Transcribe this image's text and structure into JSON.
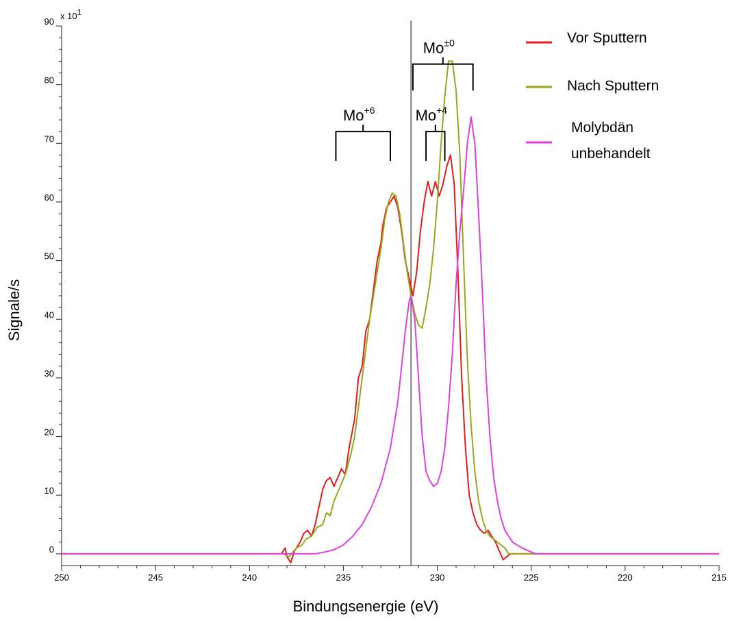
{
  "chart_data": {
    "type": "line",
    "xlabel": "Bindungsenergie (eV)",
    "ylabel": "Signale/s",
    "y_multiplier": {
      "base": "x 10",
      "exponent": "1"
    },
    "xlim": [
      250,
      215
    ],
    "ylim": [
      -2,
      90
    ],
    "x_reversed": true,
    "x_ticks": [
      250,
      245,
      240,
      235,
      230,
      225,
      220,
      215
    ],
    "x_ticks_labels": [
      "250",
      "245",
      "240",
      "235",
      "230",
      "225",
      "220",
      "215"
    ],
    "y_ticks": [
      0,
      10,
      20,
      30,
      40,
      50,
      60,
      70,
      80,
      90
    ],
    "y_ticks_labels": [
      "0",
      "10",
      "20",
      "30",
      "40",
      "50",
      "60",
      "70",
      "80",
      "90"
    ],
    "grid": false,
    "legend_position": "top-right",
    "vertical_line_x": 231.4,
    "series": [
      {
        "name": "Vor Sputtern",
        "color": "#e31b1b",
        "points": [
          [
            250,
            0
          ],
          [
            238.3,
            0
          ],
          [
            238.1,
            1
          ],
          [
            238,
            -0.5
          ],
          [
            237.8,
            -1.5
          ],
          [
            237.6,
            0.5
          ],
          [
            237.3,
            2
          ],
          [
            237.1,
            3.5
          ],
          [
            236.9,
            4
          ],
          [
            236.7,
            3
          ],
          [
            236.5,
            5
          ],
          [
            236.3,
            8
          ],
          [
            236.1,
            11
          ],
          [
            235.9,
            12.5
          ],
          [
            235.7,
            13
          ],
          [
            235.5,
            11.5
          ],
          [
            235.3,
            13
          ],
          [
            235.1,
            14.5
          ],
          [
            234.9,
            13.5
          ],
          [
            234.7,
            18
          ],
          [
            234.4,
            23
          ],
          [
            234.2,
            30
          ],
          [
            234,
            32
          ],
          [
            233.8,
            38
          ],
          [
            233.6,
            40
          ],
          [
            233.4,
            45
          ],
          [
            233.2,
            50
          ],
          [
            233,
            53
          ],
          [
            232.9,
            56
          ],
          [
            232.7,
            59
          ],
          [
            232.5,
            60
          ],
          [
            232.3,
            61
          ],
          [
            232.1,
            59
          ],
          [
            231.9,
            55
          ],
          [
            231.7,
            50
          ],
          [
            231.5,
            47
          ],
          [
            231.3,
            44
          ],
          [
            231.1,
            48
          ],
          [
            230.9,
            55
          ],
          [
            230.7,
            60
          ],
          [
            230.5,
            63.5
          ],
          [
            230.3,
            61
          ],
          [
            230.1,
            63.5
          ],
          [
            229.9,
            61
          ],
          [
            229.7,
            63
          ],
          [
            229.5,
            66
          ],
          [
            229.3,
            68
          ],
          [
            229.1,
            63
          ],
          [
            228.9,
            48
          ],
          [
            228.7,
            30
          ],
          [
            228.5,
            18
          ],
          [
            228.3,
            10
          ],
          [
            228.1,
            7
          ],
          [
            227.9,
            5
          ],
          [
            227.7,
            4
          ],
          [
            227.5,
            3.5
          ],
          [
            227.3,
            4
          ],
          [
            227.1,
            3
          ],
          [
            226.9,
            2
          ],
          [
            226.7,
            0.5
          ],
          [
            226.5,
            -1
          ],
          [
            226.3,
            -0.5
          ],
          [
            226.1,
            0
          ],
          [
            215,
            0
          ]
        ]
      },
      {
        "name": "Nach Sputtern",
        "color": "#9aa51c",
        "points": [
          [
            250,
            0
          ],
          [
            238.2,
            0
          ],
          [
            237.9,
            -0.5
          ],
          [
            237.5,
            1
          ],
          [
            237.2,
            1.5
          ],
          [
            237,
            2.5
          ],
          [
            236.7,
            3
          ],
          [
            236.4,
            4.5
          ],
          [
            236.1,
            5
          ],
          [
            235.9,
            7
          ],
          [
            235.7,
            6.5
          ],
          [
            235.5,
            9
          ],
          [
            235.3,
            10.5
          ],
          [
            235.1,
            12
          ],
          [
            234.9,
            13.5
          ],
          [
            234.6,
            17
          ],
          [
            234.4,
            20
          ],
          [
            234.2,
            25
          ],
          [
            234,
            30
          ],
          [
            233.8,
            35
          ],
          [
            233.6,
            40
          ],
          [
            233.4,
            44
          ],
          [
            233.2,
            48
          ],
          [
            233,
            52
          ],
          [
            232.8,
            57
          ],
          [
            232.6,
            60
          ],
          [
            232.4,
            61.5
          ],
          [
            232.2,
            61
          ],
          [
            232,
            58
          ],
          [
            231.8,
            53
          ],
          [
            231.6,
            48
          ],
          [
            231.4,
            44
          ],
          [
            231.2,
            41
          ],
          [
            231,
            39
          ],
          [
            230.8,
            38.5
          ],
          [
            230.6,
            42
          ],
          [
            230.4,
            46
          ],
          [
            230.2,
            52
          ],
          [
            230,
            60
          ],
          [
            229.8,
            70
          ],
          [
            229.6,
            78
          ],
          [
            229.4,
            84
          ],
          [
            229.2,
            84
          ],
          [
            229,
            79
          ],
          [
            228.8,
            68
          ],
          [
            228.6,
            50
          ],
          [
            228.4,
            33
          ],
          [
            228.2,
            22
          ],
          [
            228,
            14
          ],
          [
            227.8,
            9
          ],
          [
            227.6,
            6
          ],
          [
            227.4,
            4
          ],
          [
            227.2,
            3
          ],
          [
            227,
            2.5
          ],
          [
            226.8,
            2
          ],
          [
            226.6,
            1.5
          ],
          [
            226.4,
            1
          ],
          [
            226.2,
            0
          ],
          [
            215,
            0
          ]
        ]
      },
      {
        "name": "Molybdän unbehandelt",
        "color": "#e040e0",
        "points": [
          [
            250,
            0
          ],
          [
            236.5,
            0
          ],
          [
            236,
            0.3
          ],
          [
            235.5,
            0.7
          ],
          [
            235,
            1.5
          ],
          [
            234.5,
            3
          ],
          [
            234,
            5
          ],
          [
            233.5,
            8
          ],
          [
            233,
            12
          ],
          [
            232.5,
            18
          ],
          [
            232.3,
            22
          ],
          [
            232.1,
            26
          ],
          [
            231.9,
            32
          ],
          [
            231.7,
            38
          ],
          [
            231.5,
            43
          ],
          [
            231.4,
            44
          ],
          [
            231.2,
            40
          ],
          [
            231,
            30
          ],
          [
            230.8,
            20
          ],
          [
            230.6,
            14
          ],
          [
            230.4,
            12.5
          ],
          [
            230.2,
            11.5
          ],
          [
            230,
            12
          ],
          [
            229.8,
            14
          ],
          [
            229.6,
            18
          ],
          [
            229.4,
            25
          ],
          [
            229.2,
            34
          ],
          [
            229,
            46
          ],
          [
            228.8,
            55
          ],
          [
            228.6,
            62
          ],
          [
            228.4,
            70
          ],
          [
            228.2,
            74.5
          ],
          [
            228,
            70
          ],
          [
            227.8,
            58
          ],
          [
            227.6,
            45
          ],
          [
            227.4,
            30
          ],
          [
            227.2,
            20
          ],
          [
            227,
            13
          ],
          [
            226.8,
            9
          ],
          [
            226.6,
            6
          ],
          [
            226.4,
            4
          ],
          [
            226.2,
            3
          ],
          [
            226,
            2
          ],
          [
            225.5,
            1
          ],
          [
            225,
            0.3
          ],
          [
            224.7,
            0
          ],
          [
            215,
            0
          ]
        ]
      }
    ],
    "annotations": [
      {
        "base": "Mo",
        "sup": "+6",
        "x_from": 235.4,
        "x_to": 232.5,
        "y_top": 72,
        "y_bottom": 67
      },
      {
        "base": "Mo",
        "sup": "+4",
        "x_from": 230.6,
        "x_to": 229.6,
        "y_top": 72,
        "y_bottom": 67
      },
      {
        "base": "Mo",
        "sup": "±0",
        "x_from": 231.3,
        "x_to": 228.1,
        "y_top": 83.5,
        "y_bottom": 79
      }
    ]
  }
}
